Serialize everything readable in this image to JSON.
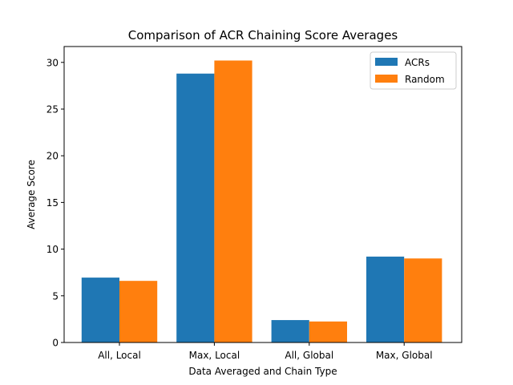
{
  "chart_data": {
    "type": "bar",
    "title": "Comparison of ACR Chaining Score Averages",
    "xlabel": "Data Averaged and Chain Type",
    "ylabel": "Average Score",
    "categories": [
      "All, Local",
      "Max, Local",
      "All, Global",
      "Max, Global"
    ],
    "series": [
      {
        "name": "ACRs",
        "color": "#1f77b4",
        "values": [
          6.95,
          28.8,
          2.4,
          9.2
        ]
      },
      {
        "name": "Random",
        "color": "#ff7f0e",
        "values": [
          6.6,
          30.2,
          2.25,
          9.0
        ]
      }
    ],
    "ylim": [
      0,
      31.7
    ],
    "yticks": [
      0,
      5,
      10,
      15,
      20,
      25,
      30
    ],
    "grid": false,
    "legend_position": "top-right"
  }
}
